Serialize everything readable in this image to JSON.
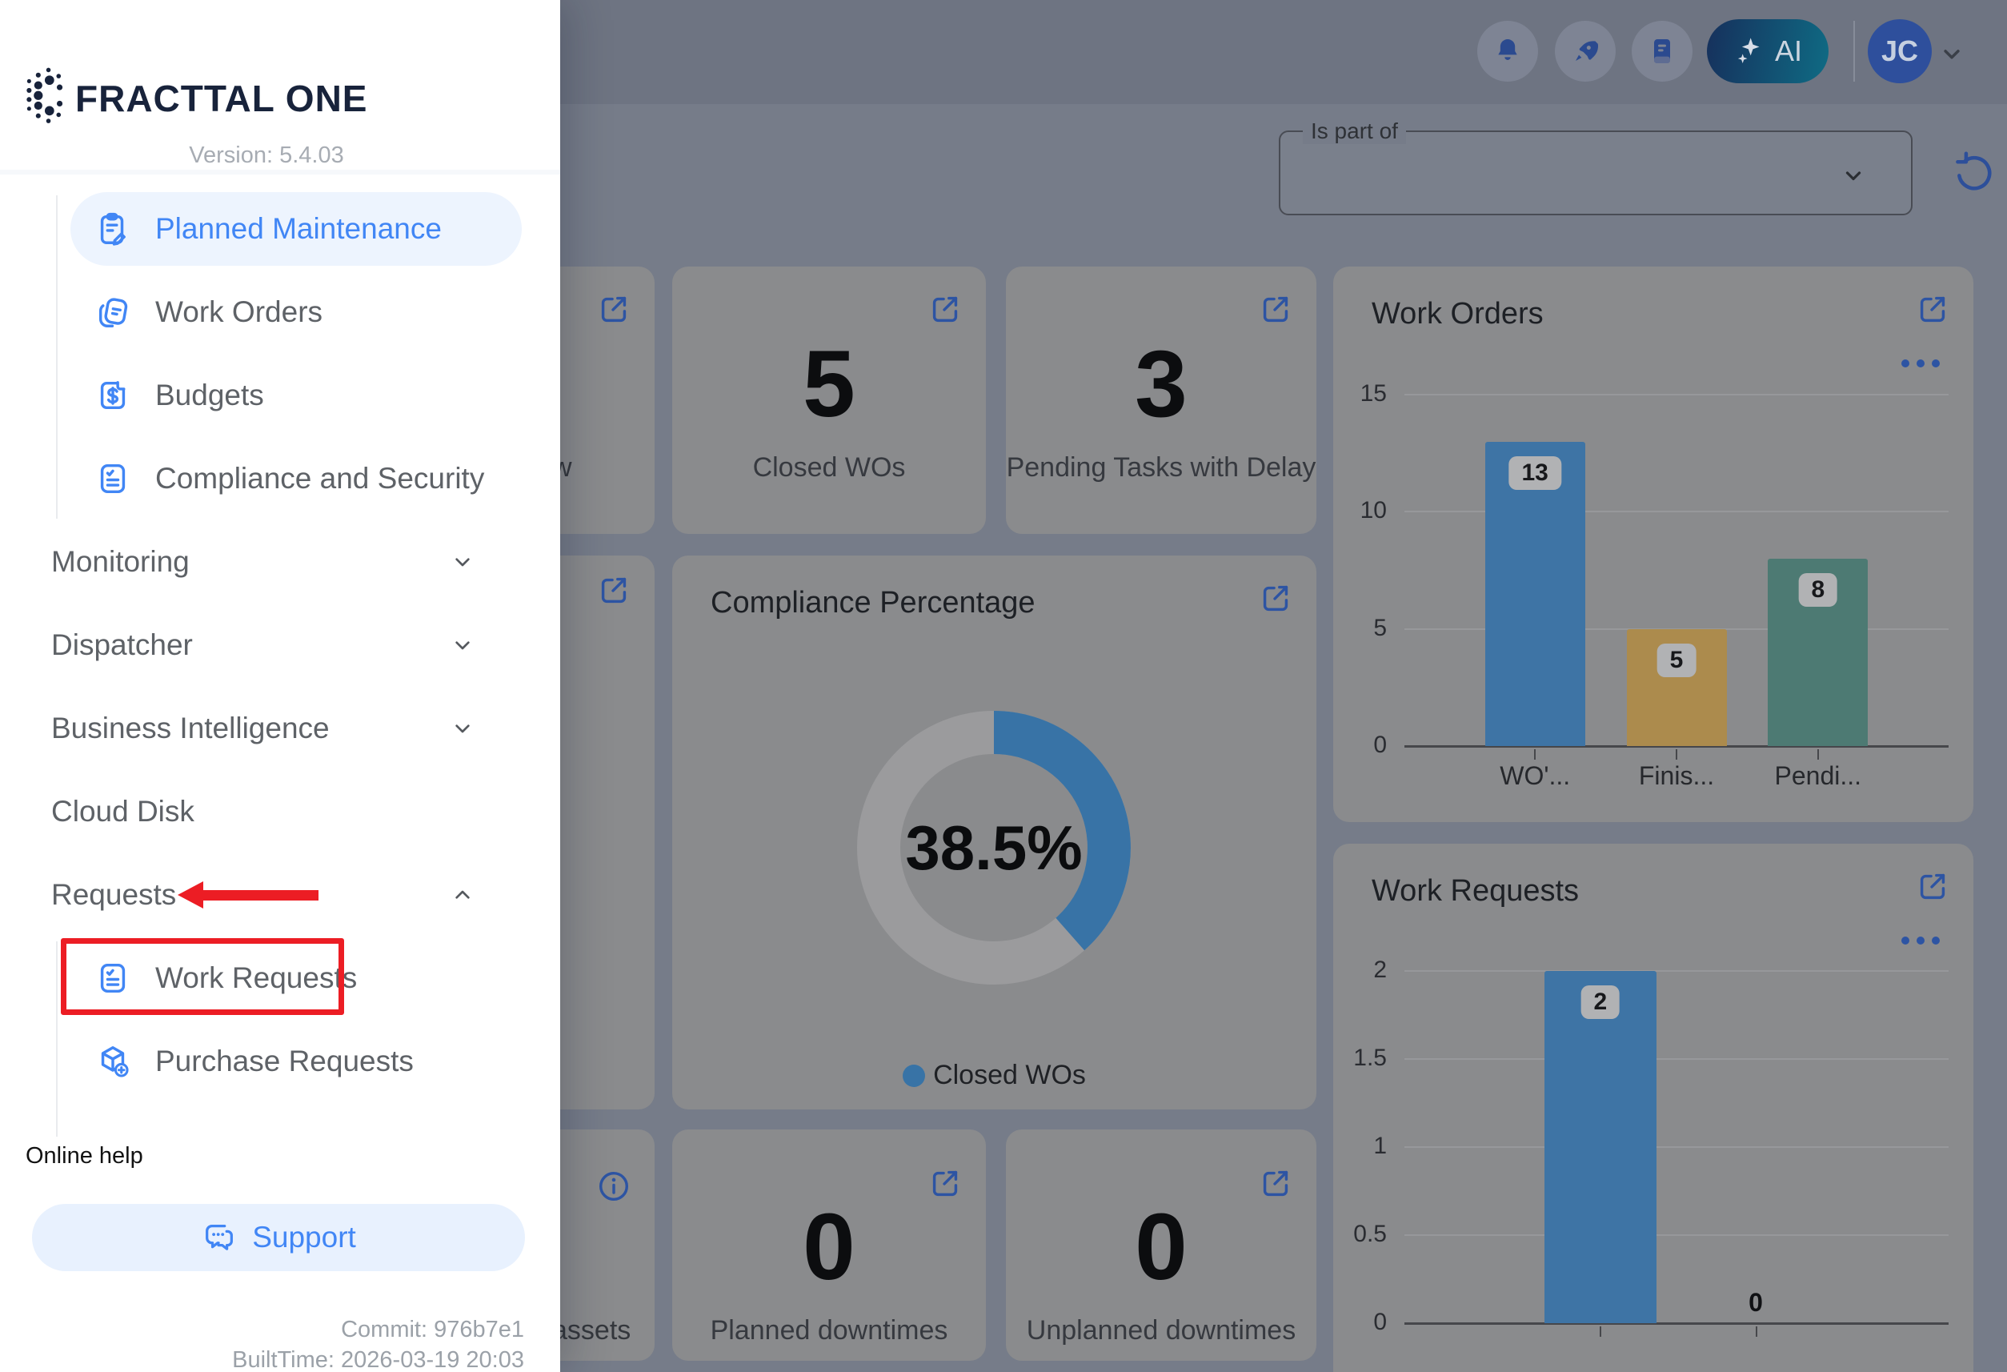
{
  "brand": {
    "name": "FRACTTAL ONE",
    "version": "Version: 5.4.03"
  },
  "build": {
    "commit": "Commit: 976b7e1",
    "built_time": "BuiltTime: 2026-03-19 20:03"
  },
  "colors": {
    "sidebar_accent": "#4186f5",
    "annotation_red": "#ec1d24",
    "icon_blue_dim": "#2d54a3",
    "card_bg_dim": "#8a8b8d"
  },
  "sidebar": {
    "maintenance_submenu": [
      {
        "label": "Planned Maintenance",
        "icon": "clipboard-pencil-icon",
        "active": true
      },
      {
        "label": "Work Orders",
        "icon": "work-orders-icon",
        "active": false
      },
      {
        "label": "Budgets",
        "icon": "budget-icon",
        "active": false
      },
      {
        "label": "Compliance and Security",
        "icon": "compliance-icon",
        "active": false
      }
    ],
    "sections": [
      {
        "label": "Monitoring",
        "chevron": "down"
      },
      {
        "label": "Dispatcher",
        "chevron": "down"
      },
      {
        "label": "Business Intelligence",
        "chevron": "down"
      },
      {
        "label": "Cloud Disk",
        "chevron": "none"
      },
      {
        "label": "Requests",
        "chevron": "up"
      }
    ],
    "requests_submenu": [
      {
        "label": "Work Requests",
        "icon": "work-requests-icon",
        "highlighted": true
      },
      {
        "label": "Purchase Requests",
        "icon": "purchase-requests-icon",
        "highlighted": false
      }
    ],
    "online_help": "Online help",
    "support_label": "Support"
  },
  "header": {
    "ai_label": "AI",
    "avatar_initials": "JC"
  },
  "filters": {
    "is_part_of_label": "Is part of"
  },
  "kpis": {
    "partial_top_fragment": "w",
    "closed_wos": {
      "value": "5",
      "label": "Closed WOs"
    },
    "pending_tasks": {
      "value": "3",
      "label": "Pending Tasks with Delay"
    },
    "planned_downtimes": {
      "value": "0",
      "label": "Planned downtimes"
    },
    "unplanned_downtimes": {
      "value": "0",
      "label": "Unplanned downtimes"
    },
    "partial_bottom_fragment": "assets"
  },
  "chart_data": [
    {
      "id": "work_orders",
      "type": "bar",
      "title": "Work Orders",
      "categories": [
        "WO'...",
        "Finis...",
        "Pendi..."
      ],
      "values": [
        13,
        5,
        8
      ],
      "bar_colors": [
        "#3e74a5",
        "#ac8b4d",
        "#4d7a73"
      ],
      "ylim": [
        0,
        15
      ],
      "yticks": [
        0,
        5,
        10,
        15
      ],
      "grid": true,
      "value_labels": true,
      "legend_position": "none"
    },
    {
      "id": "compliance",
      "type": "donut",
      "title": "Compliance Percentage",
      "value": 38.5,
      "center_label": "38.5%",
      "legend": [
        {
          "label": "Closed WOs",
          "color": "#3873a6"
        }
      ],
      "series_color": "#3873a6",
      "track_color": "#9b9b9d",
      "legend_position": "bottom"
    },
    {
      "id": "work_requests",
      "type": "bar",
      "title": "Work Requests",
      "categories": [
        "",
        ""
      ],
      "values": [
        2,
        0
      ],
      "bar_colors": [
        "#3e74a5",
        "#3e74a5"
      ],
      "ylim": [
        0,
        2
      ],
      "yticks": [
        0,
        0.5,
        1,
        1.5,
        2
      ],
      "grid": true,
      "value_labels": true,
      "legend_position": "none"
    }
  ]
}
